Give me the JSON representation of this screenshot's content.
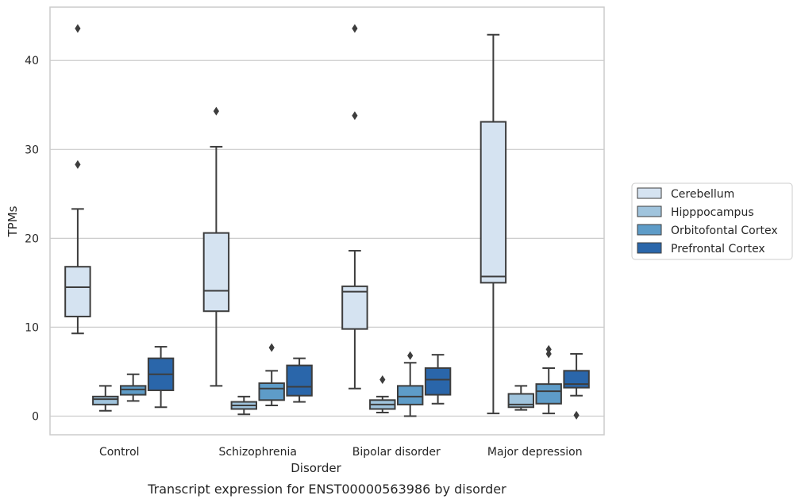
{
  "chart_data": {
    "type": "box",
    "xlabel": "Disorder",
    "ylabel": "TPMs",
    "caption": "Transcript expression for ENST00000563986 by disorder",
    "ylim": [
      -2.1,
      46.0
    ],
    "yticks": [
      0,
      10,
      20,
      30,
      40
    ],
    "grid": "horizontal",
    "legend_position": "right",
    "categories": [
      "Control",
      "Schizophrenia",
      "Bipolar disorder",
      "Major depression"
    ],
    "series": [
      {
        "name": "Cerebellum",
        "color": "#d5e3f1",
        "boxes": [
          {
            "whislo": 9.3,
            "q1": 11.2,
            "med": 14.5,
            "q3": 16.8,
            "whishi": 23.3,
            "fliers": [
              28.3,
              43.6
            ]
          },
          {
            "whislo": 3.4,
            "q1": 11.8,
            "med": 14.1,
            "q3": 20.6,
            "whishi": 30.3,
            "fliers": [
              34.3
            ]
          },
          {
            "whislo": 3.1,
            "q1": 9.8,
            "med": 14.0,
            "q3": 14.6,
            "whishi": 18.6,
            "fliers": [
              33.8,
              43.6
            ]
          },
          {
            "whislo": 0.3,
            "q1": 15.0,
            "med": 15.7,
            "q3": 33.1,
            "whishi": 42.9,
            "fliers": []
          }
        ]
      },
      {
        "name": "Hipppocampus",
        "color": "#a0c4dd",
        "boxes": [
          {
            "whislo": 0.6,
            "q1": 1.3,
            "med": 1.9,
            "q3": 2.2,
            "whishi": 3.4,
            "fliers": []
          },
          {
            "whislo": 0.2,
            "q1": 0.8,
            "med": 1.2,
            "q3": 1.6,
            "whishi": 2.2,
            "fliers": []
          },
          {
            "whislo": 0.4,
            "q1": 0.8,
            "med": 1.3,
            "q3": 1.8,
            "whishi": 2.2,
            "fliers": [
              4.1
            ]
          },
          {
            "whislo": 0.7,
            "q1": 1.0,
            "med": 1.3,
            "q3": 2.5,
            "whishi": 3.4,
            "fliers": []
          }
        ]
      },
      {
        "name": "Orbitofontal Cortex",
        "color": "#5e9cc8",
        "boxes": [
          {
            "whislo": 1.7,
            "q1": 2.4,
            "med": 3.0,
            "q3": 3.4,
            "whishi": 4.7,
            "fliers": []
          },
          {
            "whislo": 1.2,
            "q1": 1.8,
            "med": 3.1,
            "q3": 3.7,
            "whishi": 5.1,
            "fliers": [
              7.7
            ]
          },
          {
            "whislo": 0.0,
            "q1": 1.3,
            "med": 2.2,
            "q3": 3.4,
            "whishi": 6.0,
            "fliers": [
              6.8
            ]
          },
          {
            "whislo": 0.3,
            "q1": 1.4,
            "med": 2.8,
            "q3": 3.6,
            "whishi": 5.4,
            "fliers": [
              7.0,
              7.5
            ]
          }
        ]
      },
      {
        "name": "Prefrontal Cortex",
        "color": "#2a66aa",
        "boxes": [
          {
            "whislo": 1.0,
            "q1": 2.9,
            "med": 4.7,
            "q3": 6.5,
            "whishi": 7.8,
            "fliers": []
          },
          {
            "whislo": 1.6,
            "q1": 2.3,
            "med": 3.3,
            "q3": 5.7,
            "whishi": 6.5,
            "fliers": []
          },
          {
            "whislo": 1.4,
            "q1": 2.4,
            "med": 4.1,
            "q3": 5.4,
            "whishi": 6.9,
            "fliers": []
          },
          {
            "whislo": 2.3,
            "q1": 3.2,
            "med": 3.6,
            "q3": 5.1,
            "whishi": 7.0,
            "fliers": [
              0.1
            ]
          }
        ]
      }
    ]
  }
}
